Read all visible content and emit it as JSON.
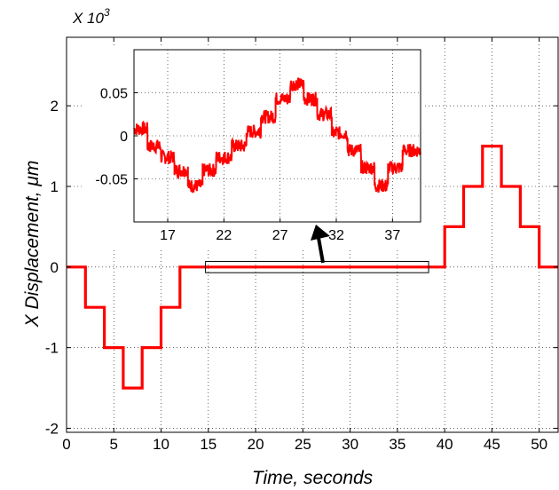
{
  "chart_data": [
    {
      "type": "line",
      "title": "",
      "xlabel": "Time, seconds",
      "ylabel": "X Displacement, μm",
      "y_multiplier_label": "X 10",
      "y_multiplier_exponent": "3",
      "xlim": [
        0,
        52
      ],
      "ylim": [
        -2.05,
        2.85
      ],
      "grid": true,
      "x_ticks": [
        0,
        5,
        10,
        15,
        20,
        25,
        30,
        35,
        40,
        45,
        50
      ],
      "x_tick_labels": [
        "0",
        "5",
        "10",
        "15",
        "20",
        "25",
        "30",
        "35",
        "40",
        "45",
        "50"
      ],
      "y_ticks": [
        -2,
        -1,
        0,
        1,
        2
      ],
      "y_tick_labels": [
        "-2",
        "-1",
        "0",
        "1",
        "2"
      ],
      "line_color": "#ff0000",
      "x": [
        0,
        2,
        2,
        4,
        4,
        6,
        6,
        8,
        8,
        10,
        10,
        12,
        12,
        14,
        14,
        16,
        16,
        18,
        18,
        20,
        20,
        22,
        22,
        24,
        24,
        26,
        26,
        28,
        28,
        30,
        30,
        32,
        32,
        34,
        34,
        36,
        36,
        38,
        38,
        40,
        40,
        42,
        42,
        44,
        44,
        46,
        46,
        48,
        48,
        50,
        50,
        52
      ],
      "values": [
        0,
        0,
        -0.5,
        -0.5,
        -1,
        -1,
        -1.5,
        -1.5,
        -1,
        -1,
        -0.5,
        -0.5,
        0,
        0,
        0,
        0,
        0,
        0,
        0,
        0,
        0,
        0,
        0,
        0,
        0,
        0,
        0,
        0,
        0,
        0,
        0,
        0,
        0,
        0,
        0,
        0,
        0,
        0,
        0,
        0,
        0.5,
        0.5,
        1,
        1,
        1.5,
        1.5,
        1,
        1,
        0.5,
        0.5,
        0,
        0
      ],
      "zoom_box_x": [
        14.7,
        38.3
      ],
      "zoom_box_y": [
        -0.07,
        0.07
      ]
    },
    {
      "type": "line",
      "title": "",
      "xlim": [
        14,
        39.5
      ],
      "ylim": [
        -0.1,
        0.1
      ],
      "grid": true,
      "x_ticks": [
        17,
        22,
        27,
        32,
        37
      ],
      "x_tick_labels": [
        "17",
        "22",
        "27",
        "32",
        "37"
      ],
      "y_ticks": [
        0.05,
        0,
        -0.05
      ],
      "y_tick_labels": [
        "0.05",
        "0",
        "-0.05"
      ],
      "line_color": "#ff0000",
      "x": [
        14,
        15.2,
        15.2,
        16.4,
        16.4,
        17.6,
        17.6,
        18.8,
        18.8,
        20.1,
        20.1,
        21.3,
        21.3,
        22.7,
        22.7,
        24,
        24,
        25.3,
        25.3,
        26.6,
        26.6,
        27.9,
        27.9,
        29.1,
        29.1,
        30.3,
        30.3,
        31.6,
        31.6,
        33,
        33,
        34.2,
        34.2,
        35.4,
        35.4,
        36.6,
        36.6,
        37.9,
        37.9,
        39.5
      ],
      "values": [
        0.008,
        0.008,
        -0.012,
        -0.012,
        -0.025,
        -0.025,
        -0.04,
        -0.04,
        -0.058,
        -0.058,
        -0.04,
        -0.04,
        -0.025,
        -0.025,
        -0.012,
        -0.012,
        0.005,
        0.005,
        0.022,
        0.022,
        0.043,
        0.043,
        0.06,
        0.06,
        0.043,
        0.043,
        0.025,
        0.025,
        0.003,
        0.003,
        -0.017,
        -0.017,
        -0.037,
        -0.037,
        -0.058,
        -0.058,
        -0.037,
        -0.037,
        -0.017,
        -0.017
      ],
      "noise_amplitude": 0.008
    }
  ]
}
